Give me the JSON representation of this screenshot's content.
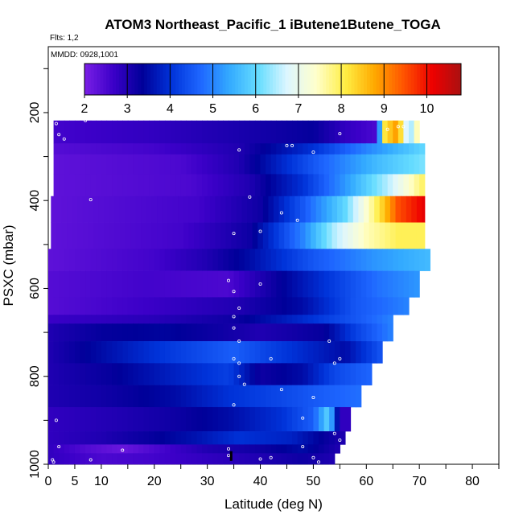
{
  "chart_data": {
    "type": "heatmap",
    "title": "ATOM3 Northeast_Pacific_1 iButene1Butene_TOGA",
    "annotations": {
      "flights": "Flts: 1,2",
      "dates": "MMDD: 0928,1001"
    },
    "xlabel": "Latitude (deg N)",
    "ylabel": "PSXC (mbar)",
    "xlim": [
      0,
      85
    ],
    "ylim": [
      1000,
      200
    ],
    "x_ticks": [
      0,
      5,
      10,
      20,
      30,
      40,
      50,
      60,
      70,
      80
    ],
    "y_ticks": [
      200,
      400,
      600,
      800,
      1000
    ],
    "colorbar": {
      "min": 2,
      "max": 10.8,
      "ticks": [
        2,
        3,
        4,
        5,
        6,
        7,
        8,
        9,
        10
      ],
      "colors": [
        "#7a1fe6",
        "#3b00c8",
        "#000099",
        "#0033d9",
        "#1e66ff",
        "#33aaff",
        "#66ddff",
        "#ddf6ff",
        "#ffffcc",
        "#ffee44",
        "#ffaa00",
        "#ff5500",
        "#ee0000",
        "#aa1111"
      ]
    },
    "bands": [
      {
        "p": [
          218,
          270
        ],
        "lat": [
          1,
          70
        ],
        "stops": [
          [
            1,
            2.6
          ],
          [
            20,
            2.8
          ],
          [
            50,
            3.3
          ],
          [
            56,
            2.8
          ],
          [
            62,
            2.5
          ],
          [
            63,
            8
          ],
          [
            66,
            9
          ],
          [
            68,
            6
          ],
          [
            70,
            8
          ]
        ]
      },
      {
        "p": [
          270,
          295
        ],
        "lat": [
          1,
          71
        ],
        "stops": [
          [
            1,
            2.4
          ],
          [
            20,
            2.6
          ],
          [
            36,
            3
          ],
          [
            50,
            4
          ],
          [
            60,
            5
          ],
          [
            71,
            6
          ]
        ]
      },
      {
        "p": [
          295,
          340
        ],
        "lat": [
          1,
          71
        ],
        "stops": [
          [
            1,
            2.3
          ],
          [
            25,
            2.5
          ],
          [
            36,
            3
          ],
          [
            50,
            4.5
          ],
          [
            62,
            5.6
          ],
          [
            71,
            6.2
          ]
        ]
      },
      {
        "p": [
          340,
          390
        ],
        "lat": [
          1,
          71
        ],
        "stops": [
          [
            1,
            2.3
          ],
          [
            27,
            2.5
          ],
          [
            38,
            3
          ],
          [
            48,
            4
          ],
          [
            56,
            5.2
          ],
          [
            64,
            6.5
          ],
          [
            71,
            8
          ]
        ]
      },
      {
        "p": [
          390,
          450
        ],
        "lat": [
          0.5,
          71
        ],
        "stops": [
          [
            0.5,
            2.3
          ],
          [
            28,
            2.6
          ],
          [
            40,
            3.2
          ],
          [
            48,
            4.5
          ],
          [
            56,
            6
          ],
          [
            62,
            8
          ],
          [
            66,
            9.5
          ],
          [
            71,
            10.2
          ]
        ]
      },
      {
        "p": [
          450,
          510
        ],
        "lat": [
          0.5,
          71
        ],
        "stops": [
          [
            0.5,
            2.3
          ],
          [
            25,
            2.6
          ],
          [
            38,
            3.2
          ],
          [
            48,
            5
          ],
          [
            54,
            6.5
          ],
          [
            60,
            7.5
          ],
          [
            66,
            8
          ],
          [
            71,
            8
          ]
        ]
      },
      {
        "p": [
          510,
          560
        ],
        "lat": [
          0,
          72
        ],
        "stops": [
          [
            0,
            2.3
          ],
          [
            20,
            2.6
          ],
          [
            30,
            3
          ],
          [
            38,
            3.5
          ],
          [
            50,
            4.5
          ],
          [
            62,
            5.2
          ],
          [
            72,
            5.6
          ]
        ]
      },
      {
        "p": [
          560,
          620
        ],
        "lat": [
          0,
          70
        ],
        "stops": [
          [
            0,
            2.4
          ],
          [
            18,
            2.6
          ],
          [
            34,
            2.5
          ],
          [
            40,
            3
          ],
          [
            52,
            4
          ],
          [
            62,
            4.8
          ],
          [
            70,
            5.2
          ]
        ]
      },
      {
        "p": [
          620,
          660
        ],
        "lat": [
          0,
          68
        ],
        "stops": [
          [
            0,
            2.4
          ],
          [
            20,
            2.7
          ],
          [
            36,
            3
          ],
          [
            48,
            3.5
          ],
          [
            58,
            4.5
          ],
          [
            68,
            5
          ]
        ]
      },
      {
        "p": [
          660,
          680
        ],
        "lat": [
          0,
          65
        ],
        "stops": [
          [
            0,
            2.7
          ],
          [
            20,
            2.9
          ],
          [
            35,
            3.2
          ],
          [
            46,
            3.8
          ],
          [
            58,
            4.5
          ],
          [
            65,
            5
          ]
        ]
      },
      {
        "p": [
          680,
          720
        ],
        "lat": [
          0,
          65
        ],
        "stops": [
          [
            0,
            3
          ],
          [
            10,
            3.3
          ],
          [
            22,
            3.4
          ],
          [
            32,
            3.2
          ],
          [
            40,
            3
          ],
          [
            52,
            3.3
          ],
          [
            58,
            4.2
          ],
          [
            65,
            5
          ]
        ]
      },
      {
        "p": [
          720,
          770
        ],
        "lat": [
          0,
          63
        ],
        "stops": [
          [
            0,
            3
          ],
          [
            10,
            3.5
          ],
          [
            20,
            4
          ],
          [
            30,
            4.4
          ],
          [
            35,
            4.6
          ],
          [
            42,
            4.2
          ],
          [
            50,
            3.8
          ],
          [
            56,
            3.5
          ],
          [
            63,
            4.5
          ]
        ]
      },
      {
        "p": [
          770,
          820
        ],
        "lat": [
          0,
          61
        ],
        "stops": [
          [
            0,
            3
          ],
          [
            12,
            3.3
          ],
          [
            24,
            3.8
          ],
          [
            34,
            4.2
          ],
          [
            40,
            3.2
          ],
          [
            48,
            3.5
          ],
          [
            54,
            4.3
          ],
          [
            61,
            4.7
          ]
        ]
      },
      {
        "p": [
          820,
          870
        ],
        "lat": [
          0,
          59
        ],
        "stops": [
          [
            0,
            3
          ],
          [
            12,
            3.2
          ],
          [
            24,
            3.5
          ],
          [
            34,
            4
          ],
          [
            44,
            4.3
          ],
          [
            52,
            4.6
          ],
          [
            59,
            4.8
          ]
        ]
      },
      {
        "p": [
          870,
          925
        ],
        "lat": [
          0,
          57
        ],
        "stops": [
          [
            0,
            2.8
          ],
          [
            14,
            3
          ],
          [
            24,
            3.2
          ],
          [
            34,
            3.5
          ],
          [
            44,
            4
          ],
          [
            50,
            4.6
          ],
          [
            53,
            6
          ],
          [
            55,
            2.8
          ],
          [
            57,
            2.8
          ]
        ]
      },
      {
        "p": [
          925,
          955
        ],
        "lat": [
          0,
          56
        ],
        "stops": [
          [
            0,
            2.8
          ],
          [
            10,
            3
          ],
          [
            20,
            3.3
          ],
          [
            28,
            3.6
          ],
          [
            36,
            4
          ],
          [
            46,
            3.8
          ],
          [
            52,
            3.3
          ],
          [
            56,
            3
          ]
        ]
      },
      {
        "p": [
          955,
          975
        ],
        "lat": [
          0,
          55
        ],
        "stops": [
          [
            0,
            2.8
          ],
          [
            8,
            2.4
          ],
          [
            14,
            2.2
          ],
          [
            22,
            2.6
          ],
          [
            30,
            3
          ],
          [
            40,
            3.2
          ],
          [
            48,
            3.5
          ],
          [
            55,
            3
          ]
        ]
      },
      {
        "p": [
          975,
          1000
        ],
        "lat": [
          0,
          54
        ],
        "stops": [
          [
            0,
            2.8
          ],
          [
            10,
            2.5
          ],
          [
            20,
            2.6
          ],
          [
            30,
            2.8
          ],
          [
            40,
            3
          ],
          [
            48,
            3.2
          ],
          [
            54,
            3
          ]
        ]
      }
    ],
    "points": [
      [
        1.5,
        225
      ],
      [
        2,
        250
      ],
      [
        3,
        260
      ],
      [
        7,
        218
      ],
      [
        55,
        248
      ],
      [
        66,
        232
      ],
      [
        67,
        232
      ],
      [
        64,
        238
      ],
      [
        45,
        275
      ],
      [
        46,
        275
      ],
      [
        50,
        290
      ],
      [
        36,
        285
      ],
      [
        8,
        398
      ],
      [
        38,
        392
      ],
      [
        44,
        428
      ],
      [
        47,
        445
      ],
      [
        35,
        475
      ],
      [
        40,
        470
      ],
      [
        34,
        582
      ],
      [
        35,
        607
      ],
      [
        40,
        590
      ],
      [
        36,
        645
      ],
      [
        35,
        664
      ],
      [
        35,
        690
      ],
      [
        36,
        720
      ],
      [
        35,
        760
      ],
      [
        36,
        770
      ],
      [
        42,
        760
      ],
      [
        53,
        720
      ],
      [
        54,
        770
      ],
      [
        55,
        760
      ],
      [
        36,
        800
      ],
      [
        37,
        818
      ],
      [
        44,
        830
      ],
      [
        50,
        848
      ],
      [
        35,
        865
      ],
      [
        48,
        895
      ],
      [
        54,
        930
      ],
      [
        55,
        945
      ],
      [
        34,
        965
      ],
      [
        34,
        980
      ],
      [
        40,
        988
      ],
      [
        42,
        985
      ],
      [
        50,
        985
      ],
      [
        51,
        995
      ],
      [
        48,
        960
      ],
      [
        8,
        990
      ],
      [
        14,
        968
      ],
      [
        1.5,
        900
      ],
      [
        2,
        960
      ],
      [
        0.8,
        990
      ],
      [
        1,
        995
      ]
    ],
    "marker": {
      "lat": 34.5,
      "p": 985
    }
  }
}
